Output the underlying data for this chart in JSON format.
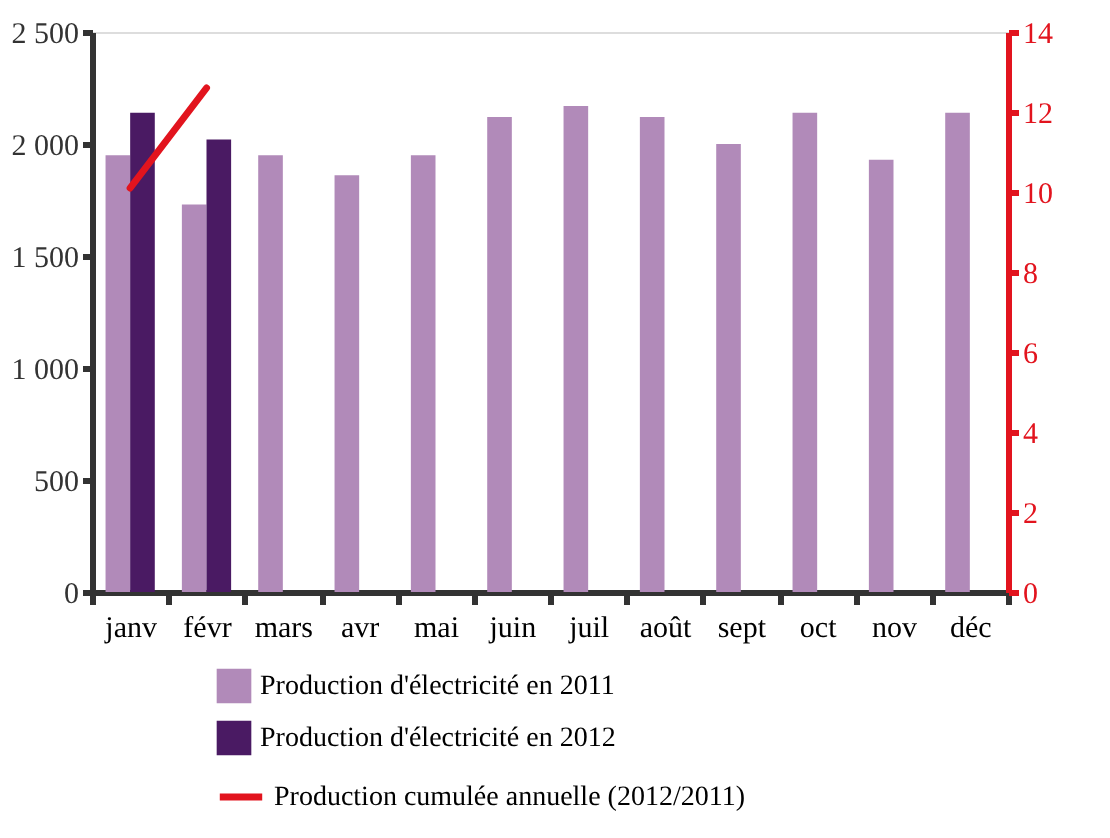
{
  "chart_data": {
    "type": "bar",
    "categories": [
      "janv",
      "févr",
      "mars",
      "avr",
      "mai",
      "juin",
      "juil",
      "août",
      "sept",
      "oct",
      "nov",
      "déc"
    ],
    "series": [
      {
        "name": "Production d'électricité en 2011",
        "color": "#b18ab9",
        "values": [
          1950,
          1730,
          1950,
          1860,
          1950,
          2120,
          2170,
          2120,
          2000,
          2140,
          1930,
          2140
        ]
      },
      {
        "name": "Production d'électricité en 2012",
        "color": "#4a1a63",
        "values": [
          2140,
          2020,
          null,
          null,
          null,
          null,
          null,
          null,
          null,
          null,
          null,
          null
        ]
      },
      {
        "name": "Production cumulée annuelle (2012/2011)",
        "color": "#e2141e",
        "type": "line",
        "axis": "y2",
        "values": [
          10.1,
          12.6,
          null,
          null,
          null,
          null,
          null,
          null,
          null,
          null,
          null,
          null
        ]
      }
    ],
    "ylim": [
      0,
      2500
    ],
    "yticks": [
      0,
      500,
      {
        "value": 1000,
        "label": "1 000"
      },
      {
        "value": 1500,
        "label": "1 500"
      },
      {
        "value": 2000,
        "label": "2 000"
      },
      {
        "value": 2500,
        "label": "2 500"
      }
    ],
    "y2lim": [
      0,
      14
    ],
    "y2ticks": [
      0,
      2,
      4,
      6,
      8,
      10,
      12,
      14
    ],
    "grid": false,
    "legend": "bottom"
  }
}
